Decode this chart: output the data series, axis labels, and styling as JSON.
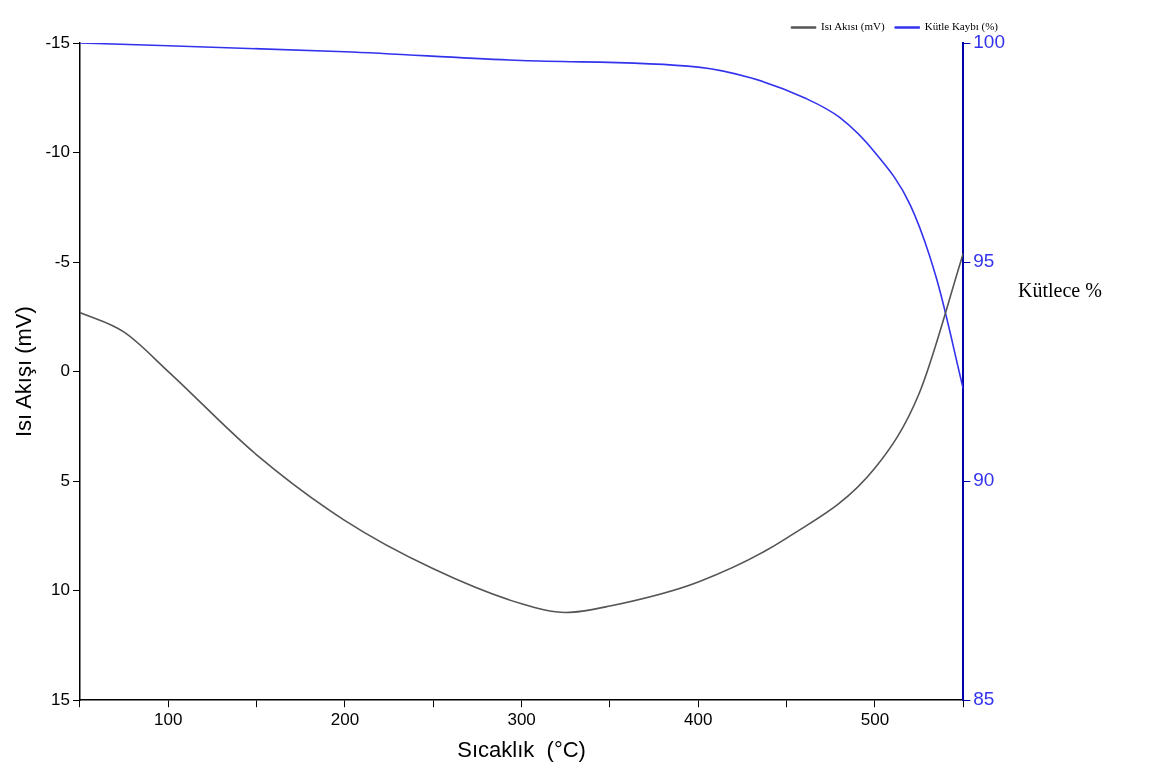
{
  "chart_data": {
    "type": "line",
    "xlabel": "Sıcaklık  (°C)",
    "ylabel": "Isı Akışı (mV)",
    "y2label": "Kütlece %",
    "xlim": [
      50,
      550
    ],
    "xticks": [
      {
        "value": 50,
        "label": null
      },
      100,
      {
        "value": 150,
        "label": null
      },
      200,
      {
        "value": 250,
        "label": null
      },
      300,
      {
        "value": 350,
        "label": null
      },
      400,
      {
        "value": 450,
        "label": null
      },
      500,
      {
        "value": 550,
        "label": null
      }
    ],
    "ylim": [
      15,
      -15
    ],
    "yticks": [
      -15,
      -10,
      -5,
      0,
      5,
      10,
      15
    ],
    "y2lim": [
      85,
      100
    ],
    "y2ticks": [
      85,
      90,
      95,
      100
    ],
    "grid": false,
    "legend": "top right",
    "marker": "none",
    "line_style": "solid",
    "series": [
      {
        "name": "Isı Akısı (mV)",
        "color": "#555555",
        "x": [
          50,
          75,
          100,
          150,
          200,
          250,
          300,
          325,
          350,
          400,
          450,
          500,
          525,
          550
        ],
        "values": [
          -2.7,
          -1.8,
          0,
          3.8,
          6.8,
          9.0,
          10.6,
          11.0,
          10.7,
          9.6,
          7.6,
          4.4,
          1.0,
          -5.4
        ]
      },
      {
        "name": "Kütle Kaybı (%)",
        "color": "#3333ee",
        "axis": "y2",
        "x": [
          50,
          200,
          300,
          400,
          430,
          460,
          480,
          500,
          520,
          535,
          550
        ],
        "values": [
          100,
          99.8,
          99.6,
          99.45,
          99.2,
          98.75,
          98.3,
          97.5,
          96.3,
          94.6,
          92.1
        ]
      }
    ]
  }
}
